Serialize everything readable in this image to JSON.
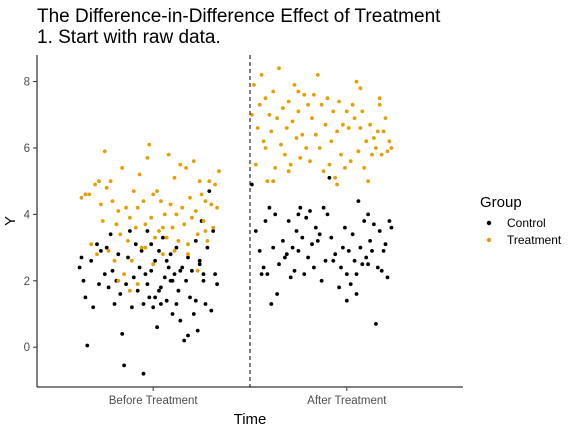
{
  "chart_data": {
    "type": "scatter",
    "title": "The Difference-in-Difference Effect of Treatment",
    "subtitle": "1. Start with raw data.",
    "xlabel": "Time",
    "ylabel": "Y",
    "categories": [
      "Before Treatment",
      "After Treatment"
    ],
    "yticks": [
      0,
      2,
      4,
      6,
      8
    ],
    "ylim": [
      -1.2,
      8.8
    ],
    "grid": false,
    "legend": {
      "title": "Group",
      "position": "right"
    },
    "treatment_divider": {
      "x": 1.5,
      "style": "dashed"
    },
    "series": [
      {
        "name": "Control",
        "color": "#000000",
        "points": [
          [
            0.63,
            2.7
          ],
          [
            0.62,
            2.4
          ],
          [
            0.64,
            2.0
          ],
          [
            0.65,
            1.5
          ],
          [
            0.66,
            0.05
          ],
          [
            0.68,
            2.6
          ],
          [
            0.69,
            1.2
          ],
          [
            0.71,
            3.1
          ],
          [
            0.72,
            1.9
          ],
          [
            0.73,
            2.9
          ],
          [
            0.75,
            2.2
          ],
          [
            0.76,
            3.0
          ],
          [
            0.77,
            1.8
          ],
          [
            0.78,
            3.4
          ],
          [
            0.79,
            2.3
          ],
          [
            0.8,
            1.3
          ],
          [
            0.81,
            2.0
          ],
          [
            0.82,
            2.8
          ],
          [
            0.83,
            1.6
          ],
          [
            0.84,
            0.4
          ],
          [
            0.85,
            -0.55
          ],
          [
            0.86,
            1.9
          ],
          [
            0.87,
            2.7
          ],
          [
            0.88,
            3.5
          ],
          [
            0.89,
            1.2
          ],
          [
            0.9,
            2.1
          ],
          [
            0.91,
            3.1
          ],
          [
            0.92,
            1.7
          ],
          [
            0.93,
            2.4
          ],
          [
            0.94,
            2.9
          ],
          [
            0.95,
            1.3
          ],
          [
            0.96,
            2.2
          ],
          [
            0.97,
            1.9
          ],
          [
            0.98,
            1.5
          ],
          [
            0.99,
            3.1
          ],
          [
            1.0,
            1.2
          ],
          [
            1.01,
            2.6
          ],
          [
            1.02,
            0.6
          ],
          [
            1.03,
            2.9
          ],
          [
            1.04,
            1.8
          ],
          [
            1.05,
            3.3
          ],
          [
            1.06,
            2.1
          ],
          [
            1.07,
            1.4
          ],
          [
            1.08,
            2.4
          ],
          [
            1.09,
            2.8
          ],
          [
            1.1,
            1.0
          ],
          [
            1.11,
            2.2
          ],
          [
            1.12,
            3.0
          ],
          [
            1.13,
            1.7
          ],
          [
            1.14,
            0.8
          ],
          [
            1.15,
            2.4
          ],
          [
            1.16,
            0.2
          ],
          [
            1.17,
            2.0
          ],
          [
            1.18,
            2.7
          ],
          [
            1.19,
            1.5
          ],
          [
            1.2,
            2.3
          ],
          [
            1.21,
            1.0
          ],
          [
            1.22,
            3.2
          ],
          [
            1.23,
            0.5
          ],
          [
            1.24,
            2.6
          ],
          [
            1.25,
            3.8
          ],
          [
            1.26,
            2.2
          ],
          [
            1.27,
            1.3
          ],
          [
            1.28,
            3.0
          ],
          [
            1.29,
            4.7
          ],
          [
            1.3,
            1.1
          ],
          [
            1.31,
            3.5
          ],
          [
            1.32,
            2.2
          ],
          [
            1.33,
            1.9
          ],
          [
            0.95,
            -0.8
          ],
          [
            1.14,
            2.3
          ],
          [
            1.18,
            0.35
          ],
          [
            1.09,
            2.0
          ],
          [
            1.07,
            2.6
          ],
          [
            1.03,
            1.7
          ],
          [
            0.97,
            3.5
          ],
          [
            0.99,
            2.3
          ],
          [
            1.04,
            1.3
          ],
          [
            1.1,
            2.0
          ],
          [
            1.12,
            1.3
          ],
          [
            1.22,
            1.4
          ],
          [
            1.26,
            2.0
          ],
          [
            1.01,
            1.5
          ],
          [
            1.24,
            2.5
          ],
          [
            1.51,
            4.9
          ],
          [
            1.53,
            3.5
          ],
          [
            1.55,
            2.9
          ],
          [
            1.57,
            2.4
          ],
          [
            1.58,
            3.8
          ],
          [
            1.59,
            2.2
          ],
          [
            1.6,
            4.2
          ],
          [
            1.61,
            1.3
          ],
          [
            1.62,
            3.0
          ],
          [
            1.63,
            4.0
          ],
          [
            1.65,
            2.5
          ],
          [
            1.67,
            3.2
          ],
          [
            1.69,
            2.8
          ],
          [
            1.7,
            3.8
          ],
          [
            1.71,
            2.1
          ],
          [
            1.72,
            3.0
          ],
          [
            1.73,
            2.3
          ],
          [
            1.74,
            3.5
          ],
          [
            1.75,
            2.9
          ],
          [
            1.76,
            4.2
          ],
          [
            1.77,
            3.3
          ],
          [
            1.78,
            2.2
          ],
          [
            1.79,
            3.9
          ],
          [
            1.8,
            2.7
          ],
          [
            1.81,
            4.1
          ],
          [
            1.82,
            3.1
          ],
          [
            1.83,
            2.4
          ],
          [
            1.84,
            3.6
          ],
          [
            1.86,
            3.4
          ],
          [
            1.87,
            2.0
          ],
          [
            1.88,
            4.2
          ],
          [
            1.89,
            2.6
          ],
          [
            1.91,
            5.1
          ],
          [
            1.92,
            3.3
          ],
          [
            1.94,
            2.8
          ],
          [
            1.96,
            1.8
          ],
          [
            1.97,
            2.4
          ],
          [
            1.98,
            3.0
          ],
          [
            1.99,
            3.6
          ],
          [
            2.0,
            2.2
          ],
          [
            2.01,
            2.9
          ],
          [
            2.02,
            1.9
          ],
          [
            2.03,
            3.4
          ],
          [
            2.04,
            2.6
          ],
          [
            2.05,
            2.2
          ],
          [
            2.06,
            4.4
          ],
          [
            2.07,
            3.0
          ],
          [
            2.08,
            2.5
          ],
          [
            2.09,
            3.8
          ],
          [
            2.1,
            2.7
          ],
          [
            2.11,
            4.0
          ],
          [
            2.12,
            3.2
          ],
          [
            2.13,
            2.9
          ],
          [
            2.14,
            3.7
          ],
          [
            2.15,
            0.7
          ],
          [
            2.16,
            2.4
          ],
          [
            2.17,
            3.5
          ],
          [
            2.18,
            2.3
          ],
          [
            2.19,
            2.9
          ],
          [
            2.2,
            3.1
          ],
          [
            2.21,
            2.1
          ],
          [
            2.22,
            3.8
          ],
          [
            2.23,
            3.6
          ],
          [
            1.85,
            3.2
          ],
          [
            1.93,
            2.6
          ],
          [
            2.05,
            1.6
          ],
          [
            1.68,
            2.7
          ],
          [
            1.56,
            2.2
          ],
          [
            1.64,
            1.6
          ],
          [
            2.11,
            2.5
          ],
          [
            2.0,
            1.4
          ],
          [
            1.9,
            4.0
          ],
          [
            1.75,
            4.0
          ]
        ]
      },
      {
        "name": "Treatment",
        "color": "#E69F00",
        "points": [
          [
            0.63,
            4.5
          ],
          [
            0.65,
            4.6
          ],
          [
            0.67,
            4.6
          ],
          [
            0.68,
            3.1
          ],
          [
            0.7,
            4.9
          ],
          [
            0.71,
            2.8
          ],
          [
            0.72,
            5.0
          ],
          [
            0.73,
            4.3
          ],
          [
            0.74,
            3.8
          ],
          [
            0.75,
            5.9
          ],
          [
            0.76,
            4.8
          ],
          [
            0.77,
            2.9
          ],
          [
            0.78,
            5.0
          ],
          [
            0.79,
            4.4
          ],
          [
            0.8,
            2.6
          ],
          [
            0.81,
            3.7
          ],
          [
            0.82,
            4.1
          ],
          [
            0.83,
            3.4
          ],
          [
            0.84,
            5.4
          ],
          [
            0.85,
            2.2
          ],
          [
            0.86,
            4.2
          ],
          [
            0.87,
            3.2
          ],
          [
            0.88,
            3.9
          ],
          [
            0.89,
            2.6
          ],
          [
            0.9,
            4.7
          ],
          [
            0.91,
            3.6
          ],
          [
            0.92,
            4.2
          ],
          [
            0.93,
            5.2
          ],
          [
            0.94,
            3.0
          ],
          [
            0.95,
            4.4
          ],
          [
            0.96,
            3.7
          ],
          [
            0.97,
            5.7
          ],
          [
            0.98,
            6.1
          ],
          [
            0.99,
            3.9
          ],
          [
            1.0,
            4.6
          ],
          [
            1.01,
            3.3
          ],
          [
            1.02,
            4.7
          ],
          [
            1.03,
            3.5
          ],
          [
            1.04,
            4.4
          ],
          [
            1.05,
            2.8
          ],
          [
            1.06,
            4.0
          ],
          [
            1.07,
            3.3
          ],
          [
            1.08,
            5.8
          ],
          [
            1.09,
            4.3
          ],
          [
            1.1,
            3.6
          ],
          [
            1.11,
            5.1
          ],
          [
            1.12,
            4.0
          ],
          [
            1.13,
            3.2
          ],
          [
            1.14,
            5.5
          ],
          [
            1.15,
            4.2
          ],
          [
            1.16,
            3.7
          ],
          [
            1.17,
            5.4
          ],
          [
            1.18,
            2.8
          ],
          [
            1.19,
            4.5
          ],
          [
            1.2,
            3.9
          ],
          [
            1.21,
            5.6
          ],
          [
            1.22,
            4.1
          ],
          [
            1.23,
            3.4
          ],
          [
            1.24,
            5.0
          ],
          [
            1.25,
            4.6
          ],
          [
            1.26,
            3.8
          ],
          [
            1.27,
            4.4
          ],
          [
            1.28,
            3.2
          ],
          [
            1.29,
            5.0
          ],
          [
            1.3,
            4.3
          ],
          [
            1.31,
            3.6
          ],
          [
            1.32,
            4.9
          ],
          [
            1.33,
            4.2
          ],
          [
            1.34,
            5.3
          ],
          [
            0.96,
            3.0
          ],
          [
            1.0,
            2.5
          ],
          [
            1.05,
            3.6
          ],
          [
            1.11,
            2.9
          ],
          [
            1.18,
            3.1
          ],
          [
            1.23,
            2.3
          ],
          [
            1.27,
            3.5
          ],
          [
            0.82,
            2.0
          ],
          [
            0.88,
            1.7
          ],
          [
            0.92,
            1.9
          ],
          [
            1.51,
            7.0
          ],
          [
            1.52,
            7.9
          ],
          [
            1.53,
            5.5
          ],
          [
            1.54,
            6.6
          ],
          [
            1.55,
            7.3
          ],
          [
            1.56,
            8.2
          ],
          [
            1.57,
            6.2
          ],
          [
            1.58,
            7.5
          ],
          [
            1.59,
            5.0
          ],
          [
            1.6,
            7.0
          ],
          [
            1.61,
            6.5
          ],
          [
            1.62,
            7.7
          ],
          [
            1.63,
            5.4
          ],
          [
            1.64,
            6.9
          ],
          [
            1.65,
            8.4
          ],
          [
            1.66,
            6.1
          ],
          [
            1.67,
            7.2
          ],
          [
            1.68,
            5.8
          ],
          [
            1.69,
            6.6
          ],
          [
            1.7,
            7.4
          ],
          [
            1.71,
            5.5
          ],
          [
            1.72,
            6.8
          ],
          [
            1.73,
            7.9
          ],
          [
            1.74,
            6.3
          ],
          [
            1.75,
            7.1
          ],
          [
            1.76,
            5.7
          ],
          [
            1.77,
            6.4
          ],
          [
            1.78,
            7.6
          ],
          [
            1.79,
            6.0
          ],
          [
            1.8,
            7.3
          ],
          [
            1.81,
            5.6
          ],
          [
            1.82,
            6.9
          ],
          [
            1.83,
            7.6
          ],
          [
            1.84,
            6.4
          ],
          [
            1.85,
            8.2
          ],
          [
            1.86,
            6.0
          ],
          [
            1.87,
            7.3
          ],
          [
            1.88,
            5.3
          ],
          [
            1.89,
            6.7
          ],
          [
            1.9,
            7.5
          ],
          [
            1.91,
            5.5
          ],
          [
            1.92,
            6.2
          ],
          [
            1.93,
            7.1
          ],
          [
            1.94,
            5.1
          ],
          [
            1.95,
            6.5
          ],
          [
            1.96,
            7.4
          ],
          [
            1.97,
            5.8
          ],
          [
            1.98,
            6.7
          ],
          [
            1.99,
            5.4
          ],
          [
            2.0,
            7.1
          ],
          [
            2.01,
            6.6
          ],
          [
            2.02,
            5.6
          ],
          [
            2.03,
            7.3
          ],
          [
            2.04,
            6.9
          ],
          [
            2.05,
            8.0
          ],
          [
            2.06,
            5.9
          ],
          [
            2.07,
            6.6
          ],
          [
            2.08,
            7.1
          ],
          [
            2.09,
            5.4
          ],
          [
            2.1,
            6.2
          ],
          [
            2.11,
            5.0
          ],
          [
            2.12,
            6.7
          ],
          [
            2.13,
            5.8
          ],
          [
            2.14,
            6.3
          ],
          [
            2.15,
            6.0
          ],
          [
            2.16,
            6.5
          ],
          [
            2.17,
            7.3
          ],
          [
            2.18,
            5.8
          ],
          [
            2.19,
            6.5
          ],
          [
            2.2,
            6.9
          ],
          [
            2.21,
            5.9
          ],
          [
            2.22,
            6.2
          ],
          [
            2.23,
            6.0
          ],
          [
            1.95,
            4.9
          ],
          [
            1.75,
            7.7
          ],
          [
            2.07,
            7.8
          ],
          [
            1.62,
            5.0
          ],
          [
            1.7,
            5.3
          ],
          [
            2.17,
            7.5
          ],
          [
            1.58,
            6.0
          ]
        ]
      }
    ]
  }
}
